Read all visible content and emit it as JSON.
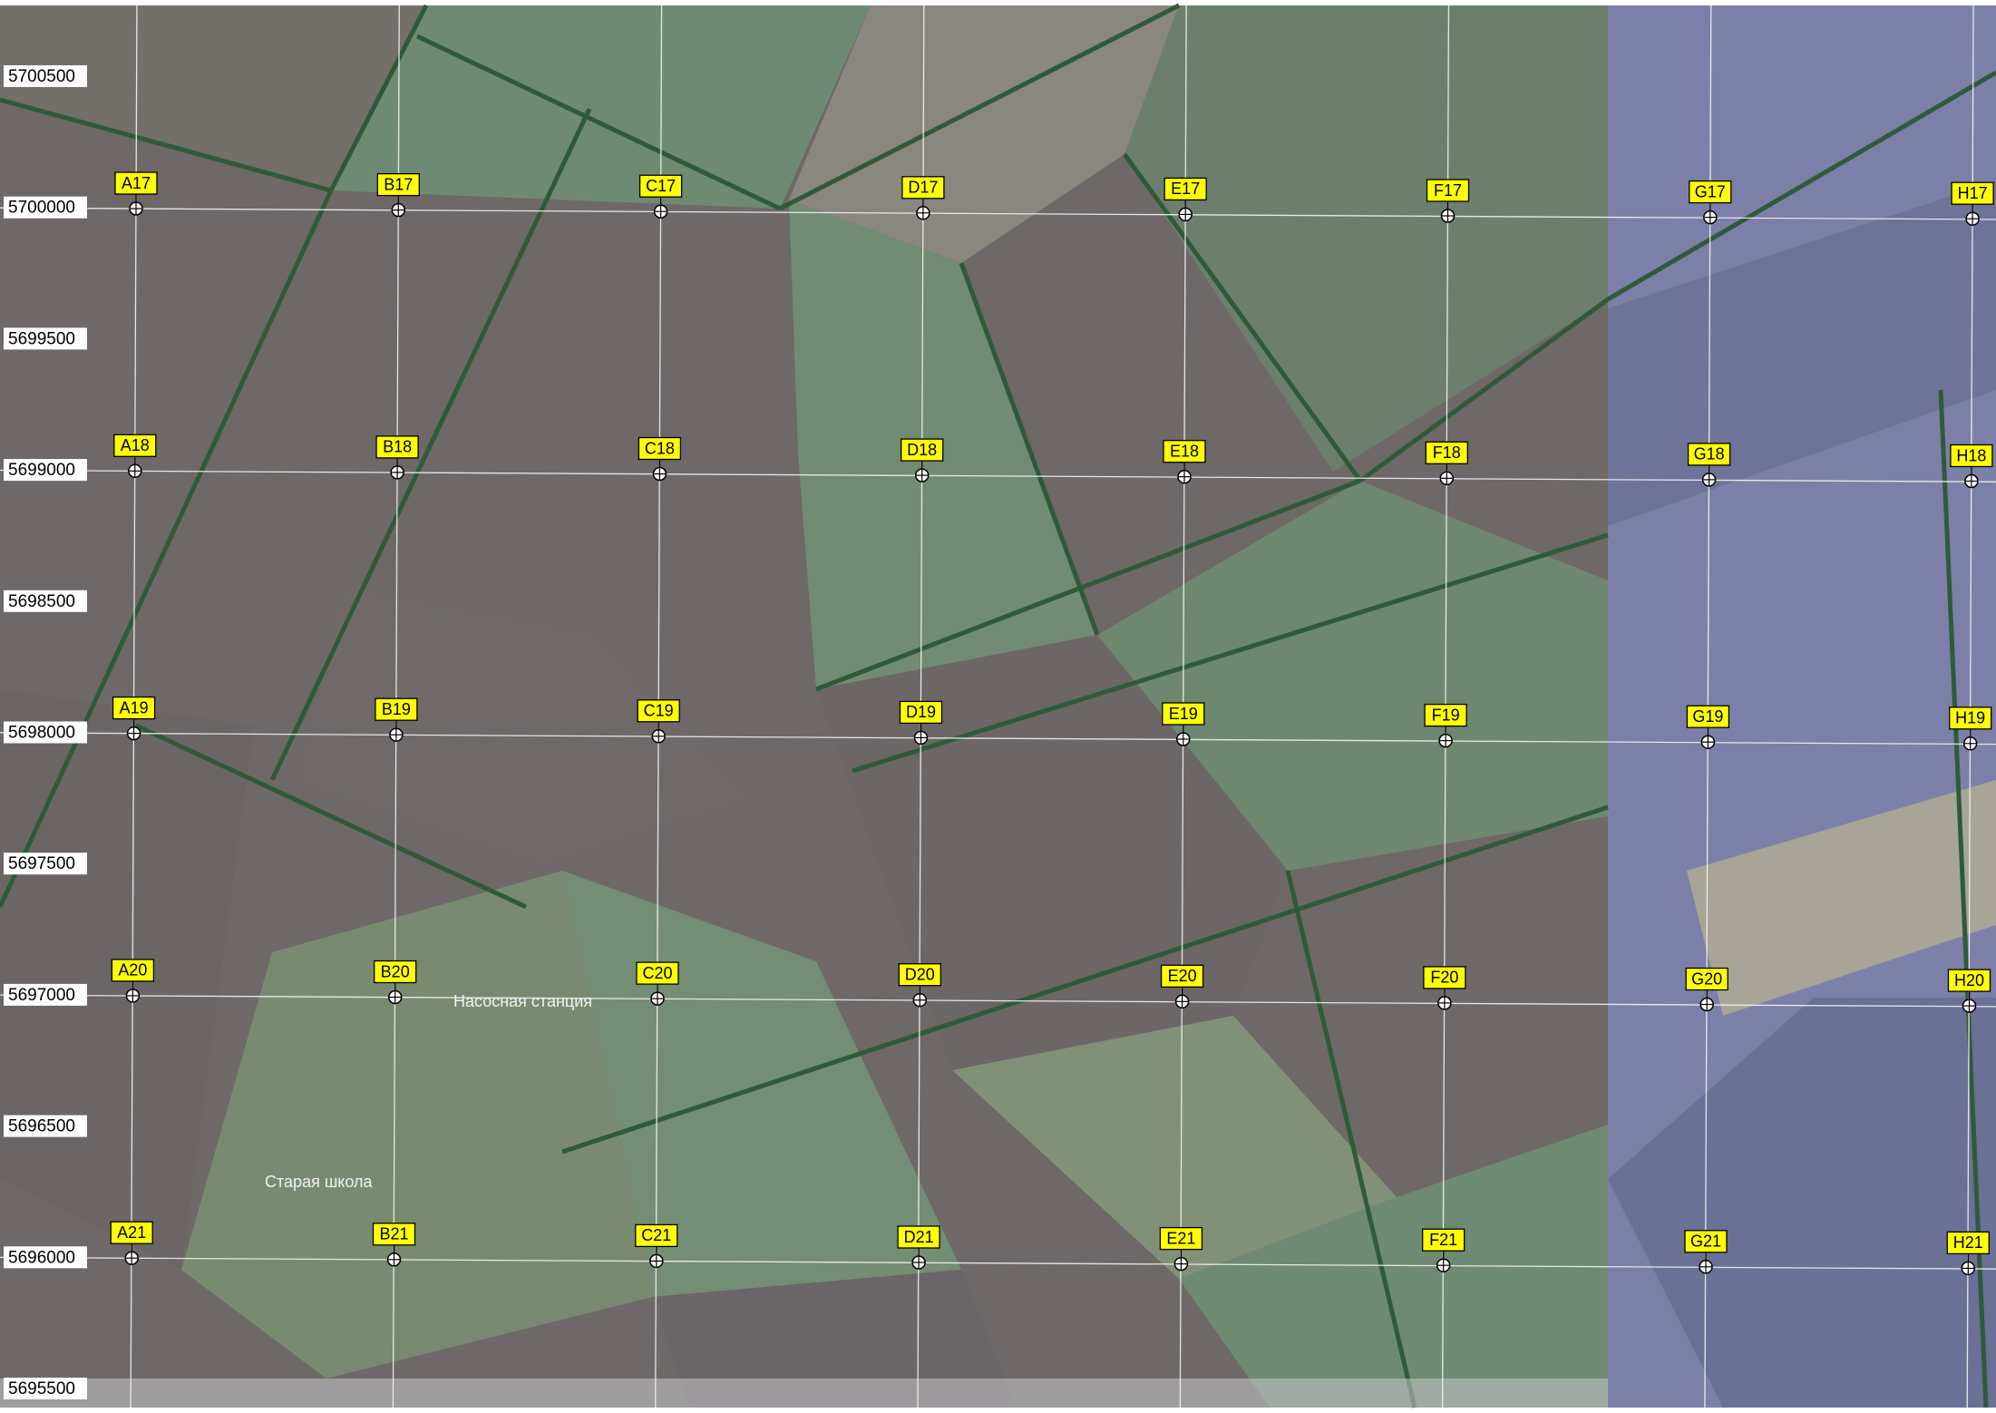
{
  "northing_labels": [
    5700500,
    5700000,
    5699500,
    5699000,
    5698500,
    5698000,
    5697500,
    5697000,
    5696500,
    5696000,
    5695500
  ],
  "grid_points": [
    [
      "A17",
      "B17",
      "C17",
      "D17",
      "E17",
      "F17",
      "G17",
      "H17"
    ],
    [
      "A18",
      "B18",
      "C18",
      "D18",
      "E18",
      "F18",
      "G18",
      "H18"
    ],
    [
      "A19",
      "B19",
      "C19",
      "D19",
      "E19",
      "F19",
      "G19",
      "H19"
    ],
    [
      "A20",
      "B20",
      "C20",
      "D20",
      "E20",
      "F20",
      "G20",
      "H20"
    ],
    [
      "A21",
      "B21",
      "C21",
      "D21",
      "E21",
      "F21",
      "G21",
      "H21"
    ]
  ],
  "places": [
    "Насосная станция",
    "Старая школа"
  ]
}
